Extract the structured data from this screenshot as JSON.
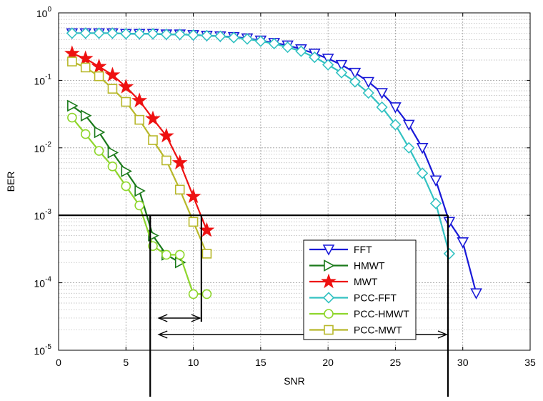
{
  "chart_data": {
    "type": "line",
    "x_label": "SNR",
    "y_label": "BER",
    "y_scale": "log",
    "grid": true,
    "minor_grid": true,
    "legend": "lower-right",
    "xlim": [
      0,
      35
    ],
    "xticks": [
      0,
      5,
      10,
      15,
      20,
      25,
      30,
      35
    ],
    "ylim": [
      1e-05,
      1
    ],
    "yticks": [
      {
        "value": 1e-05,
        "label": "10",
        "exponent": "-5"
      },
      {
        "value": 0.0001,
        "label": "10",
        "exponent": "-4"
      },
      {
        "value": 0.001,
        "label": "10",
        "exponent": "-3"
      },
      {
        "value": 0.01,
        "label": "10",
        "exponent": "-2"
      },
      {
        "value": 0.1,
        "label": "10",
        "exponent": "-1"
      },
      {
        "value": 1,
        "label": "10",
        "exponent": "0"
      }
    ],
    "series": [
      {
        "name": "FFT",
        "color": "#1a1ad8",
        "marker": "triangle-down",
        "x": [
          1,
          2,
          3,
          4,
          5,
          6,
          7,
          8,
          9,
          10,
          11,
          12,
          13,
          14,
          15,
          16,
          17,
          18,
          19,
          20,
          21,
          22,
          23,
          24,
          25,
          26,
          27,
          28,
          29,
          30,
          31
        ],
        "values": [
          0.5,
          0.5,
          0.5,
          0.5,
          0.49,
          0.49,
          0.49,
          0.48,
          0.48,
          0.47,
          0.46,
          0.45,
          0.44,
          0.42,
          0.39,
          0.36,
          0.33,
          0.29,
          0.25,
          0.21,
          0.17,
          0.13,
          0.095,
          0.065,
          0.04,
          0.022,
          0.01,
          0.0033,
          0.0008,
          0.0004,
          7e-05
        ]
      },
      {
        "name": "HMWT",
        "color": "#1a7a1a",
        "marker": "triangle-right",
        "x": [
          1,
          2,
          3,
          4,
          5,
          6,
          7,
          8,
          9
        ],
        "values": [
          0.042,
          0.03,
          0.017,
          0.0085,
          0.0045,
          0.0023,
          0.0005,
          0.00026,
          0.0002
        ]
      },
      {
        "name": "MWT",
        "color": "#ee1111",
        "marker": "star",
        "x": [
          1,
          2,
          3,
          4,
          5,
          6,
          7,
          8,
          9,
          10,
          11
        ],
        "values": [
          0.25,
          0.21,
          0.16,
          0.12,
          0.08,
          0.05,
          0.027,
          0.015,
          0.006,
          0.0019,
          0.0006
        ]
      },
      {
        "name": "PCC-FFT",
        "color": "#33c2c2",
        "marker": "diamond",
        "x": [
          1,
          2,
          3,
          4,
          5,
          6,
          7,
          8,
          9,
          10,
          11,
          12,
          13,
          14,
          15,
          16,
          17,
          18,
          19,
          20,
          21,
          22,
          23,
          24,
          25,
          26,
          27,
          28,
          29
        ],
        "values": [
          0.5,
          0.5,
          0.5,
          0.5,
          0.49,
          0.49,
          0.49,
          0.48,
          0.48,
          0.47,
          0.46,
          0.45,
          0.43,
          0.41,
          0.38,
          0.35,
          0.31,
          0.27,
          0.22,
          0.17,
          0.13,
          0.095,
          0.065,
          0.04,
          0.022,
          0.01,
          0.0042,
          0.0015,
          0.00027
        ]
      },
      {
        "name": "PCC-HMWT",
        "color": "#8ed62c",
        "marker": "circle",
        "x": [
          1,
          2,
          3,
          4,
          5,
          6,
          7,
          8,
          9,
          10,
          11
        ],
        "values": [
          0.028,
          0.016,
          0.009,
          0.0053,
          0.0027,
          0.0014,
          0.00035,
          0.00026,
          0.00026,
          6.8e-05,
          6.8e-05
        ]
      },
      {
        "name": "PCC-MWT",
        "color": "#b8b82a",
        "marker": "square",
        "x": [
          1,
          2,
          3,
          4,
          5,
          6,
          7,
          8,
          9,
          10,
          11
        ],
        "values": [
          0.19,
          0.155,
          0.115,
          0.075,
          0.048,
          0.026,
          0.013,
          0.0065,
          0.0024,
          0.0008,
          0.00027
        ]
      }
    ],
    "threshold": 0.001,
    "vlines": [
      6.8,
      10.6,
      28.9
    ]
  }
}
